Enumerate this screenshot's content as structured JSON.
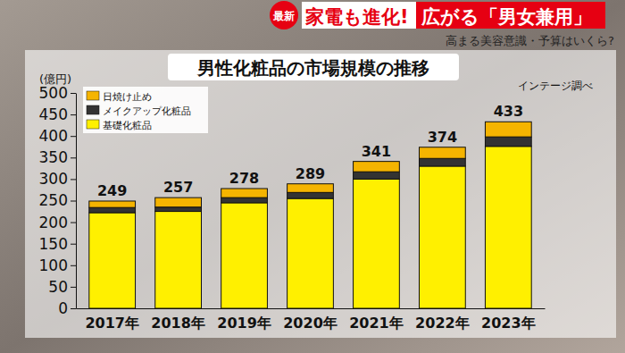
{
  "chart_data": {
    "type": "bar",
    "title": "男性化粧品の市場規模の推移",
    "subtitle": "高まる美容意識・予算はいくら?",
    "annotations": [
      "最新",
      "家電も進化!",
      "広がる「男女兼用」",
      "インテージ調べ"
    ],
    "y_label": "(億円)",
    "categories": [
      "2017年",
      "2018年",
      "2019年",
      "2020年",
      "2021年",
      "2022年",
      "2023年"
    ],
    "series": [
      {
        "name": "日焼け止め",
        "color": "#f5b400",
        "values": [
          15,
          22,
          21,
          20,
          24,
          26,
          35
        ]
      },
      {
        "name": "メイクアップ化粧品",
        "color": "#333333",
        "values": [
          12,
          10,
          12,
          14,
          17,
          18,
          22
        ]
      },
      {
        "name": "基礎化粧品",
        "color": "#fff000",
        "values": [
          222,
          225,
          245,
          255,
          300,
          330,
          376
        ]
      }
    ],
    "totals": [
      249,
      257,
      278,
      289,
      341,
      374,
      433
    ],
    "stacked": true,
    "grid": false,
    "legend": "top-left",
    "ylim": [
      0,
      500
    ],
    "yticks": [
      0,
      50,
      100,
      150,
      200,
      250,
      300,
      350,
      400,
      450,
      500
    ]
  }
}
